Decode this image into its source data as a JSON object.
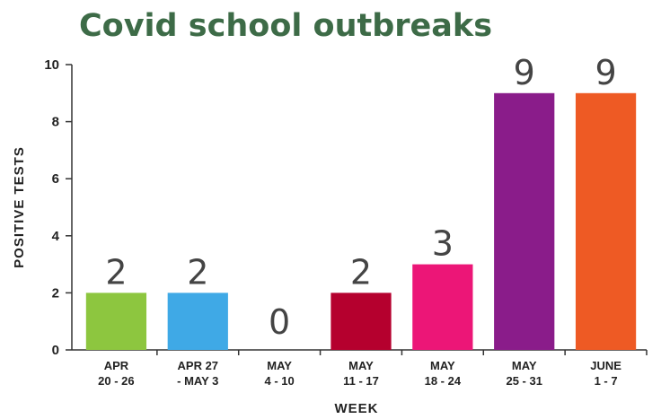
{
  "chart_data": {
    "type": "bar",
    "title": "Covid school outbreaks",
    "xlabel": "WEEK",
    "ylabel": "POSITIVE TESTS",
    "ylim": [
      0,
      10
    ],
    "yticks": [
      "0",
      "2",
      "4",
      "6",
      "8",
      "10"
    ],
    "grid": false,
    "categories": [
      [
        "APR",
        "20 - 26"
      ],
      [
        "APR 27",
        "- MAY 3"
      ],
      [
        "MAY",
        "4 - 10"
      ],
      [
        "MAY",
        "11 - 17"
      ],
      [
        "MAY",
        "18 - 24"
      ],
      [
        "MAY",
        "25 - 31"
      ],
      [
        "JUNE",
        "1 - 7"
      ]
    ],
    "values": [
      2,
      2,
      0,
      2,
      3,
      9,
      9
    ],
    "data_labels": [
      "2",
      "2",
      "0",
      "2",
      "3",
      "9",
      "9"
    ],
    "bar_colors": [
      "#8dc63f",
      "#3fa9e6",
      "#ffffff",
      "#b5002e",
      "#ec1677",
      "#8a1c8a",
      "#ee5a24"
    ]
  }
}
